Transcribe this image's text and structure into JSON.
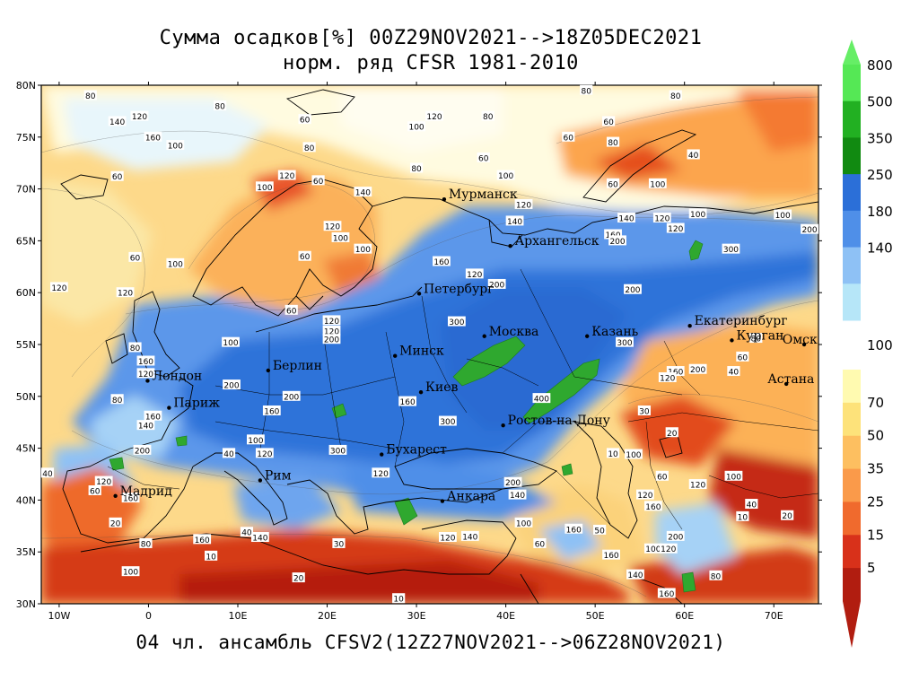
{
  "title": {
    "line1": "Сумма осадков[%] 00Z29NOV2021-->18Z05DEC2021",
    "line2": "норм. ряд CFSR 1981-2010",
    "footer": "04 чл. ансамбль CFSV2(12Z27NOV2021-->06Z28NOV2021)"
  },
  "axes": {
    "lat_labels": [
      "80N",
      "75N",
      "70N",
      "65N",
      "60N",
      "55N",
      "50N",
      "45N",
      "40N",
      "35N",
      "30N"
    ],
    "lon_labels": [
      "10W",
      "0",
      "10E",
      "20E",
      "30E",
      "40E",
      "50E",
      "60E",
      "70E"
    ]
  },
  "colorbar": {
    "upper": [
      {
        "label": "800",
        "color": "#55e855"
      },
      {
        "label": "500",
        "color": "#22b022"
      },
      {
        "label": "350",
        "color": "#118a11"
      },
      {
        "label": "250",
        "color": "#2b6fd8"
      },
      {
        "label": "180",
        "color": "#4f8fe8"
      },
      {
        "label": "140",
        "color": "#8ec1f5"
      },
      {
        "label": "",
        "color": "#b6e6f8"
      }
    ],
    "mid_label": "100",
    "lower": [
      {
        "label": "70",
        "color": "#fffab0"
      },
      {
        "label": "50",
        "color": "#fde27a"
      },
      {
        "label": "35",
        "color": "#fdbf60"
      },
      {
        "label": "25",
        "color": "#fa9a4a"
      },
      {
        "label": "15",
        "color": "#f06a2d"
      },
      {
        "label": "5",
        "color": "#d8311a"
      },
      {
        "label": "",
        "color": "#b11d10"
      }
    ]
  },
  "cities": [
    {
      "name": "Мурманск",
      "lon": 33.1,
      "lat": 69.0
    },
    {
      "name": "Архангельск",
      "lon": 40.5,
      "lat": 64.5
    },
    {
      "name": "Петербург",
      "lon": 30.3,
      "lat": 59.9
    },
    {
      "name": "Москва",
      "lon": 37.6,
      "lat": 55.8
    },
    {
      "name": "Казань",
      "lon": 49.1,
      "lat": 55.8
    },
    {
      "name": "Екатеринбург",
      "lon": 60.6,
      "lat": 56.8
    },
    {
      "name": "Курган",
      "lon": 65.3,
      "lat": 55.4
    },
    {
      "name": "Омск",
      "lon": 73.4,
      "lat": 55.0
    },
    {
      "name": "Астана",
      "lon": 71.4,
      "lat": 51.2
    },
    {
      "name": "Минск",
      "lon": 27.6,
      "lat": 53.9
    },
    {
      "name": "Берлин",
      "lon": 13.4,
      "lat": 52.5
    },
    {
      "name": "Лондон",
      "lon": -0.1,
      "lat": 51.5
    },
    {
      "name": "Париж",
      "lon": 2.3,
      "lat": 48.9
    },
    {
      "name": "Киев",
      "lon": 30.5,
      "lat": 50.4
    },
    {
      "name": "Ростов-на-Дону",
      "lon": 39.7,
      "lat": 47.2
    },
    {
      "name": "Бухарест",
      "lon": 26.1,
      "lat": 44.4
    },
    {
      "name": "Рим",
      "lon": 12.5,
      "lat": 41.9
    },
    {
      "name": "Мадрид",
      "lon": -3.7,
      "lat": 40.4
    },
    {
      "name": "Анкара",
      "lon": 32.9,
      "lat": 39.9
    }
  ],
  "contour_labels": [
    {
      "v": "80",
      "lon": -6.5,
      "lat": 79
    },
    {
      "v": "140",
      "lon": -3.5,
      "lat": 76.5
    },
    {
      "v": "120",
      "lon": -1,
      "lat": 77
    },
    {
      "v": "160",
      "lon": 0.5,
      "lat": 75
    },
    {
      "v": "100",
      "lon": 3,
      "lat": 74.2
    },
    {
      "v": "80",
      "lon": 8,
      "lat": 78
    },
    {
      "v": "60",
      "lon": 17.5,
      "lat": 76.7
    },
    {
      "v": "80",
      "lon": 18,
      "lat": 74
    },
    {
      "v": "100",
      "lon": 30,
      "lat": 76
    },
    {
      "v": "120",
      "lon": 32,
      "lat": 77
    },
    {
      "v": "80",
      "lon": 38,
      "lat": 77
    },
    {
      "v": "80",
      "lon": 49,
      "lat": 79.5
    },
    {
      "v": "80",
      "lon": 59,
      "lat": 79
    },
    {
      "v": "60",
      "lon": 51.5,
      "lat": 76.5
    },
    {
      "v": "60",
      "lon": 47,
      "lat": 75
    },
    {
      "v": "80",
      "lon": 52,
      "lat": 74.5
    },
    {
      "v": "40",
      "lon": 61,
      "lat": 73.3
    },
    {
      "v": "60",
      "lon": 37.5,
      "lat": 73
    },
    {
      "v": "80",
      "lon": 30,
      "lat": 72
    },
    {
      "v": "100",
      "lon": 40,
      "lat": 71.3
    },
    {
      "v": "60",
      "lon": 52,
      "lat": 70.5
    },
    {
      "v": "100",
      "lon": 57,
      "lat": 70.5
    },
    {
      "v": "60",
      "lon": -3.5,
      "lat": 71.2
    },
    {
      "v": "100",
      "lon": 13,
      "lat": 70.2
    },
    {
      "v": "120",
      "lon": 15.5,
      "lat": 71.3
    },
    {
      "v": "60",
      "lon": 19,
      "lat": 70.8
    },
    {
      "v": "140",
      "lon": 24,
      "lat": 69.7
    },
    {
      "v": "120",
      "lon": 42,
      "lat": 68.5
    },
    {
      "v": "140",
      "lon": 41,
      "lat": 66.9
    },
    {
      "v": "140",
      "lon": 53.5,
      "lat": 67.2
    },
    {
      "v": "120",
      "lon": 57.5,
      "lat": 67.2
    },
    {
      "v": "100",
      "lon": 61.5,
      "lat": 67.6
    },
    {
      "v": "100",
      "lon": 71,
      "lat": 67.5
    },
    {
      "v": "200",
      "lon": 74,
      "lat": 66.1
    },
    {
      "v": "120",
      "lon": 20.6,
      "lat": 66.4
    },
    {
      "v": "100",
      "lon": 21.5,
      "lat": 65.3
    },
    {
      "v": "100",
      "lon": 24,
      "lat": 64.2
    },
    {
      "v": "160",
      "lon": 52,
      "lat": 65.6
    },
    {
      "v": "200",
      "lon": 52.5,
      "lat": 65
    },
    {
      "v": "120",
      "lon": 59,
      "lat": 66.2
    },
    {
      "v": "300",
      "lon": 65.2,
      "lat": 64.2
    },
    {
      "v": "60",
      "lon": -1.5,
      "lat": 63.4
    },
    {
      "v": "100",
      "lon": 3,
      "lat": 62.8
    },
    {
      "v": "60",
      "lon": 17.5,
      "lat": 63.5
    },
    {
      "v": "160",
      "lon": 32.8,
      "lat": 63
    },
    {
      "v": "120",
      "lon": 36.5,
      "lat": 61.8
    },
    {
      "v": "200",
      "lon": 39,
      "lat": 60.8
    },
    {
      "v": "200",
      "lon": 54.2,
      "lat": 60.3
    },
    {
      "v": "120",
      "lon": -10,
      "lat": 60.5
    },
    {
      "v": "120",
      "lon": -2.6,
      "lat": 60
    },
    {
      "v": "60",
      "lon": 16,
      "lat": 58.3
    },
    {
      "v": "120",
      "lon": 20.5,
      "lat": 57.3
    },
    {
      "v": "120",
      "lon": 20.5,
      "lat": 56.3
    },
    {
      "v": "200",
      "lon": 20.5,
      "lat": 55.5
    },
    {
      "v": "300",
      "lon": 34.5,
      "lat": 57.2
    },
    {
      "v": "300",
      "lon": 53.3,
      "lat": 55.2
    },
    {
      "v": "80",
      "lon": 68,
      "lat": 55.6
    },
    {
      "v": "60",
      "lon": 66.5,
      "lat": 53.8
    },
    {
      "v": "40",
      "lon": 65.5,
      "lat": 52.4
    },
    {
      "v": "80",
      "lon": -1.5,
      "lat": 54.7
    },
    {
      "v": "100",
      "lon": 9.2,
      "lat": 55.2
    },
    {
      "v": "160",
      "lon": -0.3,
      "lat": 53.4
    },
    {
      "v": "120",
      "lon": -0.3,
      "lat": 52.2
    },
    {
      "v": "200",
      "lon": 9.3,
      "lat": 51.1
    },
    {
      "v": "200",
      "lon": 16,
      "lat": 50
    },
    {
      "v": "160",
      "lon": 13.8,
      "lat": 48.6
    },
    {
      "v": "160",
      "lon": 59,
      "lat": 52.4
    },
    {
      "v": "120",
      "lon": 58.1,
      "lat": 51.8
    },
    {
      "v": "200",
      "lon": 61.5,
      "lat": 52.6
    },
    {
      "v": "30",
      "lon": 55.5,
      "lat": 48.6
    },
    {
      "v": "20",
      "lon": 58.6,
      "lat": 46.5
    },
    {
      "v": "80",
      "lon": -3.5,
      "lat": 49.7
    },
    {
      "v": "160",
      "lon": 0.5,
      "lat": 48.1
    },
    {
      "v": "140",
      "lon": -0.3,
      "lat": 47.2
    },
    {
      "v": "160",
      "lon": 29,
      "lat": 49.5
    },
    {
      "v": "300",
      "lon": 33.5,
      "lat": 47.6
    },
    {
      "v": "400",
      "lon": 44,
      "lat": 49.8
    },
    {
      "v": "200",
      "lon": -0.7,
      "lat": 44.8
    },
    {
      "v": "100",
      "lon": 12,
      "lat": 45.8
    },
    {
      "v": "120",
      "lon": 13,
      "lat": 44.5
    },
    {
      "v": "40",
      "lon": 9,
      "lat": 44.5
    },
    {
      "v": "300",
      "lon": 21.2,
      "lat": 44.8
    },
    {
      "v": "120",
      "lon": 26,
      "lat": 42.6
    },
    {
      "v": "100",
      "lon": 54.3,
      "lat": 44.4
    },
    {
      "v": "10",
      "lon": 52,
      "lat": 44.5
    },
    {
      "v": "40",
      "lon": -11.3,
      "lat": 42.6
    },
    {
      "v": "120",
      "lon": -5,
      "lat": 41.8
    },
    {
      "v": "160",
      "lon": -2,
      "lat": 40.2
    },
    {
      "v": "60",
      "lon": -6,
      "lat": 40.9
    },
    {
      "v": "20",
      "lon": -3.7,
      "lat": 37.8
    },
    {
      "v": "200",
      "lon": 40.8,
      "lat": 41.7
    },
    {
      "v": "140",
      "lon": 41.3,
      "lat": 40.5
    },
    {
      "v": "120",
      "lon": 61.5,
      "lat": 41.5
    },
    {
      "v": "60",
      "lon": 57.5,
      "lat": 42.3
    },
    {
      "v": "100",
      "lon": 65.5,
      "lat": 42.3
    },
    {
      "v": "120",
      "lon": 55.6,
      "lat": 40.5
    },
    {
      "v": "160",
      "lon": 56.5,
      "lat": 39.4
    },
    {
      "v": "10",
      "lon": 66.5,
      "lat": 38.4
    },
    {
      "v": "20",
      "lon": 71.5,
      "lat": 38.5
    },
    {
      "v": "40",
      "lon": 67.5,
      "lat": 39.6
    },
    {
      "v": "100",
      "lon": 42,
      "lat": 37.8
    },
    {
      "v": "160",
      "lon": 47.6,
      "lat": 37.2
    },
    {
      "v": "50",
      "lon": 50.5,
      "lat": 37.1
    },
    {
      "v": "200",
      "lon": 59,
      "lat": 36.5
    },
    {
      "v": "100",
      "lon": 56.5,
      "lat": 35.3
    },
    {
      "v": "120",
      "lon": 58.2,
      "lat": 35.3
    },
    {
      "v": "80",
      "lon": -0.3,
      "lat": 35.8
    },
    {
      "v": "160",
      "lon": 6,
      "lat": 36.2
    },
    {
      "v": "140",
      "lon": 12.5,
      "lat": 36.4
    },
    {
      "v": "40",
      "lon": 11,
      "lat": 36.9
    },
    {
      "v": "30",
      "lon": 21.3,
      "lat": 35.8
    },
    {
      "v": "140",
      "lon": 36,
      "lat": 36.5
    },
    {
      "v": "120",
      "lon": 33.5,
      "lat": 36.4
    },
    {
      "v": "60",
      "lon": 43.8,
      "lat": 35.8
    },
    {
      "v": "10",
      "lon": 7,
      "lat": 34.6
    },
    {
      "v": "100",
      "lon": -2,
      "lat": 33.1
    },
    {
      "v": "160",
      "lon": 51.8,
      "lat": 34.7
    },
    {
      "v": "140",
      "lon": 54.5,
      "lat": 32.8
    },
    {
      "v": "80",
      "lon": 63.5,
      "lat": 32.7
    },
    {
      "v": "20",
      "lon": 16.8,
      "lat": 32.5
    },
    {
      "v": "160",
      "lon": 58,
      "lat": 31
    },
    {
      "v": "10",
      "lon": 28,
      "lat": 30.5
    }
  ]
}
